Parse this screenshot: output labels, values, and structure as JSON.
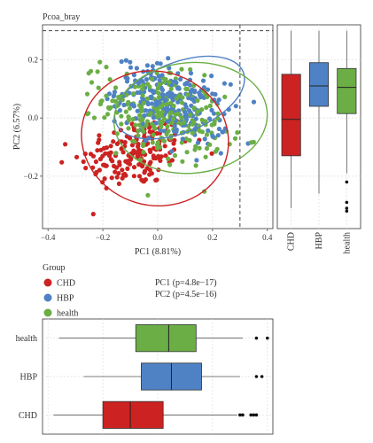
{
  "colors": {
    "CHD": "#CC2222",
    "HBP": "#4F82C4",
    "health": "#6AAE45"
  },
  "legend": {
    "title": "Group",
    "items": [
      "CHD",
      "HBP",
      "health"
    ]
  },
  "stats": {
    "pc1": "PC1 (p=4.8e−17)",
    "pc2": "PC2 (p=4.5e−16)"
  },
  "chart_data": [
    {
      "type": "scatter",
      "title": "Pcoa_bray",
      "xlabel": "PC1 (8.81%)",
      "ylabel": "PC2 (6.57%)",
      "xlim": [
        -0.42,
        0.42
      ],
      "ylim": [
        -0.38,
        0.32
      ],
      "xticks": [
        "−0.4",
        "−0.2",
        "0.0",
        "0.2",
        "0.4"
      ],
      "yticks": [
        "−0.2",
        "0.0",
        "0.2"
      ],
      "grid": true,
      "reference_lines": {
        "x": 0.3,
        "y": 0.3
      },
      "series": [
        {
          "name": "CHD",
          "cloud_center": [
            -0.08,
            -0.12
          ],
          "cloud_spread": [
            0.1,
            0.06
          ],
          "point_count": 180
        },
        {
          "name": "HBP",
          "cloud_center": [
            0.05,
            0.05
          ],
          "cloud_spread": [
            0.1,
            0.06
          ],
          "point_count": 260
        },
        {
          "name": "health",
          "cloud_center": [
            0.02,
            0.01
          ],
          "cloud_spread": [
            0.11,
            0.075
          ],
          "point_count": 260
        }
      ],
      "ellipses": [
        {
          "name": "CHD",
          "center": [
            -0.01,
            -0.07
          ],
          "semi_axes": [
            0.27,
            0.23
          ],
          "angle_deg": 16
        },
        {
          "name": "HBP",
          "center": [
            0.08,
            0.07
          ],
          "semi_axes": [
            0.25,
            0.12
          ],
          "angle_deg": -22
        },
        {
          "name": "health",
          "center": [
            0.12,
            0.0
          ],
          "semi_axes": [
            0.28,
            0.19
          ],
          "angle_deg": -5
        }
      ]
    },
    {
      "type": "boxplot",
      "axis": "PC2",
      "orientation": "vertical",
      "ylim": [
        -0.38,
        0.32
      ],
      "categories": [
        "CHD",
        "HBP",
        "health"
      ],
      "boxes": [
        {
          "name": "CHD",
          "min": -0.31,
          "q1": -0.13,
          "median": -0.005,
          "q3": 0.15,
          "max": 0.3
        },
        {
          "name": "HBP",
          "min": -0.26,
          "q1": 0.04,
          "median": 0.11,
          "q3": 0.19,
          "max": 0.3,
          "outliers": []
        },
        {
          "name": "health",
          "min": -0.19,
          "q1": 0.015,
          "median": 0.105,
          "q3": 0.17,
          "max": 0.3,
          "outliers": [
            -0.22,
            -0.29,
            -0.31,
            -0.32
          ]
        }
      ]
    },
    {
      "type": "boxplot",
      "axis": "PC1",
      "orientation": "horizontal",
      "xlim": [
        -0.42,
        0.42
      ],
      "categories": [
        "CHD",
        "HBP",
        "health"
      ],
      "boxes": [
        {
          "name": "CHD",
          "min": -0.38,
          "q1": -0.2,
          "median": -0.1,
          "q3": 0.02,
          "max": 0.29,
          "outliers": [
            0.3,
            0.31,
            0.34,
            0.35,
            0.36
          ]
        },
        {
          "name": "HBP",
          "min": -0.27,
          "q1": -0.06,
          "median": 0.05,
          "q3": 0.16,
          "max": 0.3,
          "outliers": [
            0.36,
            0.38
          ]
        },
        {
          "name": "health",
          "min": -0.36,
          "q1": -0.08,
          "median": 0.04,
          "q3": 0.14,
          "max": 0.31,
          "outliers": [
            0.36,
            0.4
          ]
        }
      ]
    }
  ]
}
